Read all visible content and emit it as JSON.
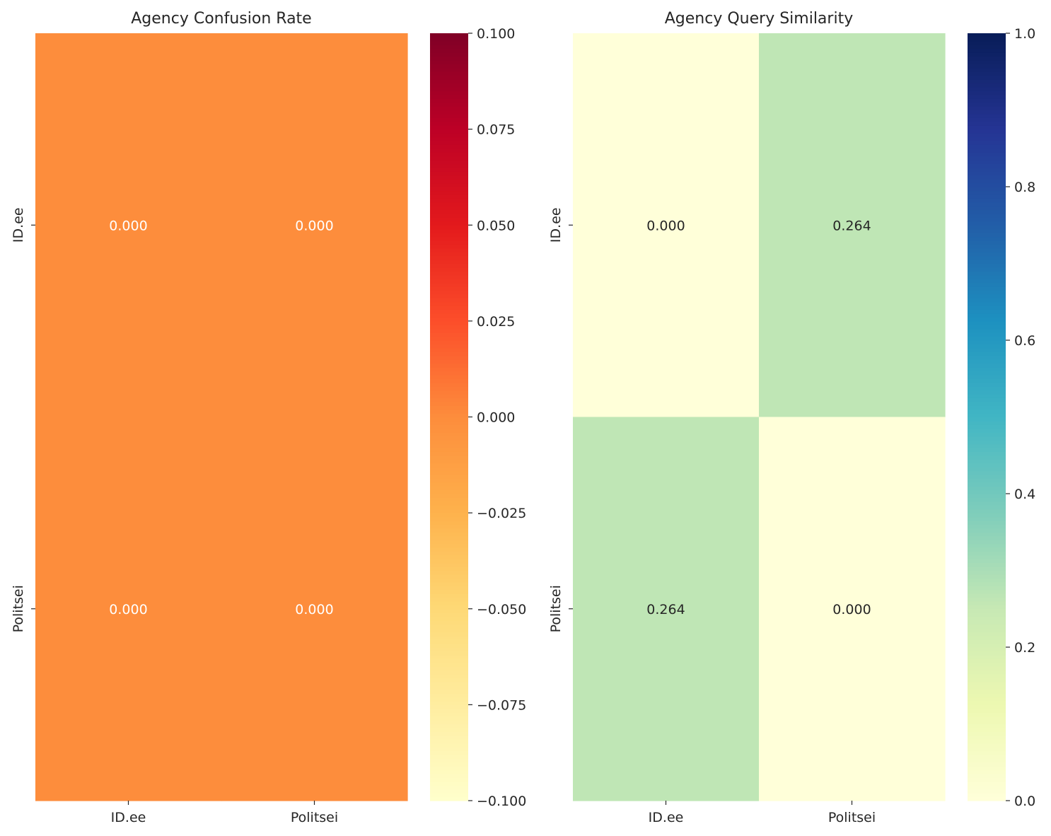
{
  "chart_data": [
    {
      "type": "heatmap",
      "title": "Agency Confusion Rate",
      "row_labels": [
        "ID.ee",
        "Politsei"
      ],
      "col_labels": [
        "ID.ee",
        "Politsei"
      ],
      "values": [
        [
          0.0,
          0.0
        ],
        [
          0.0,
          0.0
        ]
      ],
      "value_labels": [
        [
          "0.000",
          "0.000"
        ],
        [
          "0.000",
          "0.000"
        ]
      ],
      "colormap": "YlOrRd",
      "colorbar": {
        "range": [
          -0.1,
          0.1
        ],
        "ticks": [
          0.1,
          0.075,
          0.05,
          0.025,
          0.0,
          -0.025,
          -0.05,
          -0.075,
          -0.1
        ],
        "tick_labels": [
          "0.100",
          "0.075",
          "0.050",
          "0.025",
          "0.000",
          "−0.025",
          "−0.050",
          "−0.075",
          "−0.100"
        ]
      },
      "colormap_stops": [
        "#ffffcc",
        "#ffeda0",
        "#fed976",
        "#feb24c",
        "#fd8d3c",
        "#fc4e2a",
        "#e31a1c",
        "#bd0026",
        "#800026"
      ],
      "cell_text_color": "#ffffff"
    },
    {
      "type": "heatmap",
      "title": "Agency Query Similarity",
      "row_labels": [
        "ID.ee",
        "Politsei"
      ],
      "col_labels": [
        "ID.ee",
        "Politsei"
      ],
      "values": [
        [
          0.0,
          0.264
        ],
        [
          0.264,
          0.0
        ]
      ],
      "value_labels": [
        [
          "0.000",
          "0.264"
        ],
        [
          "0.264",
          "0.000"
        ]
      ],
      "colormap": "YlGnBu",
      "colorbar": {
        "range": [
          0.0,
          1.0
        ],
        "ticks": [
          1.0,
          0.8,
          0.6,
          0.4,
          0.2,
          0.0
        ],
        "tick_labels": [
          "1.0",
          "0.8",
          "0.6",
          "0.4",
          "0.2",
          "0.0"
        ]
      },
      "colormap_stops": [
        "#ffffd9",
        "#edf8b1",
        "#c7e9b4",
        "#7fcdbb",
        "#41b6c4",
        "#1d91c0",
        "#225ea8",
        "#253494",
        "#081d58"
      ],
      "cell_text_color": "#262626"
    }
  ]
}
